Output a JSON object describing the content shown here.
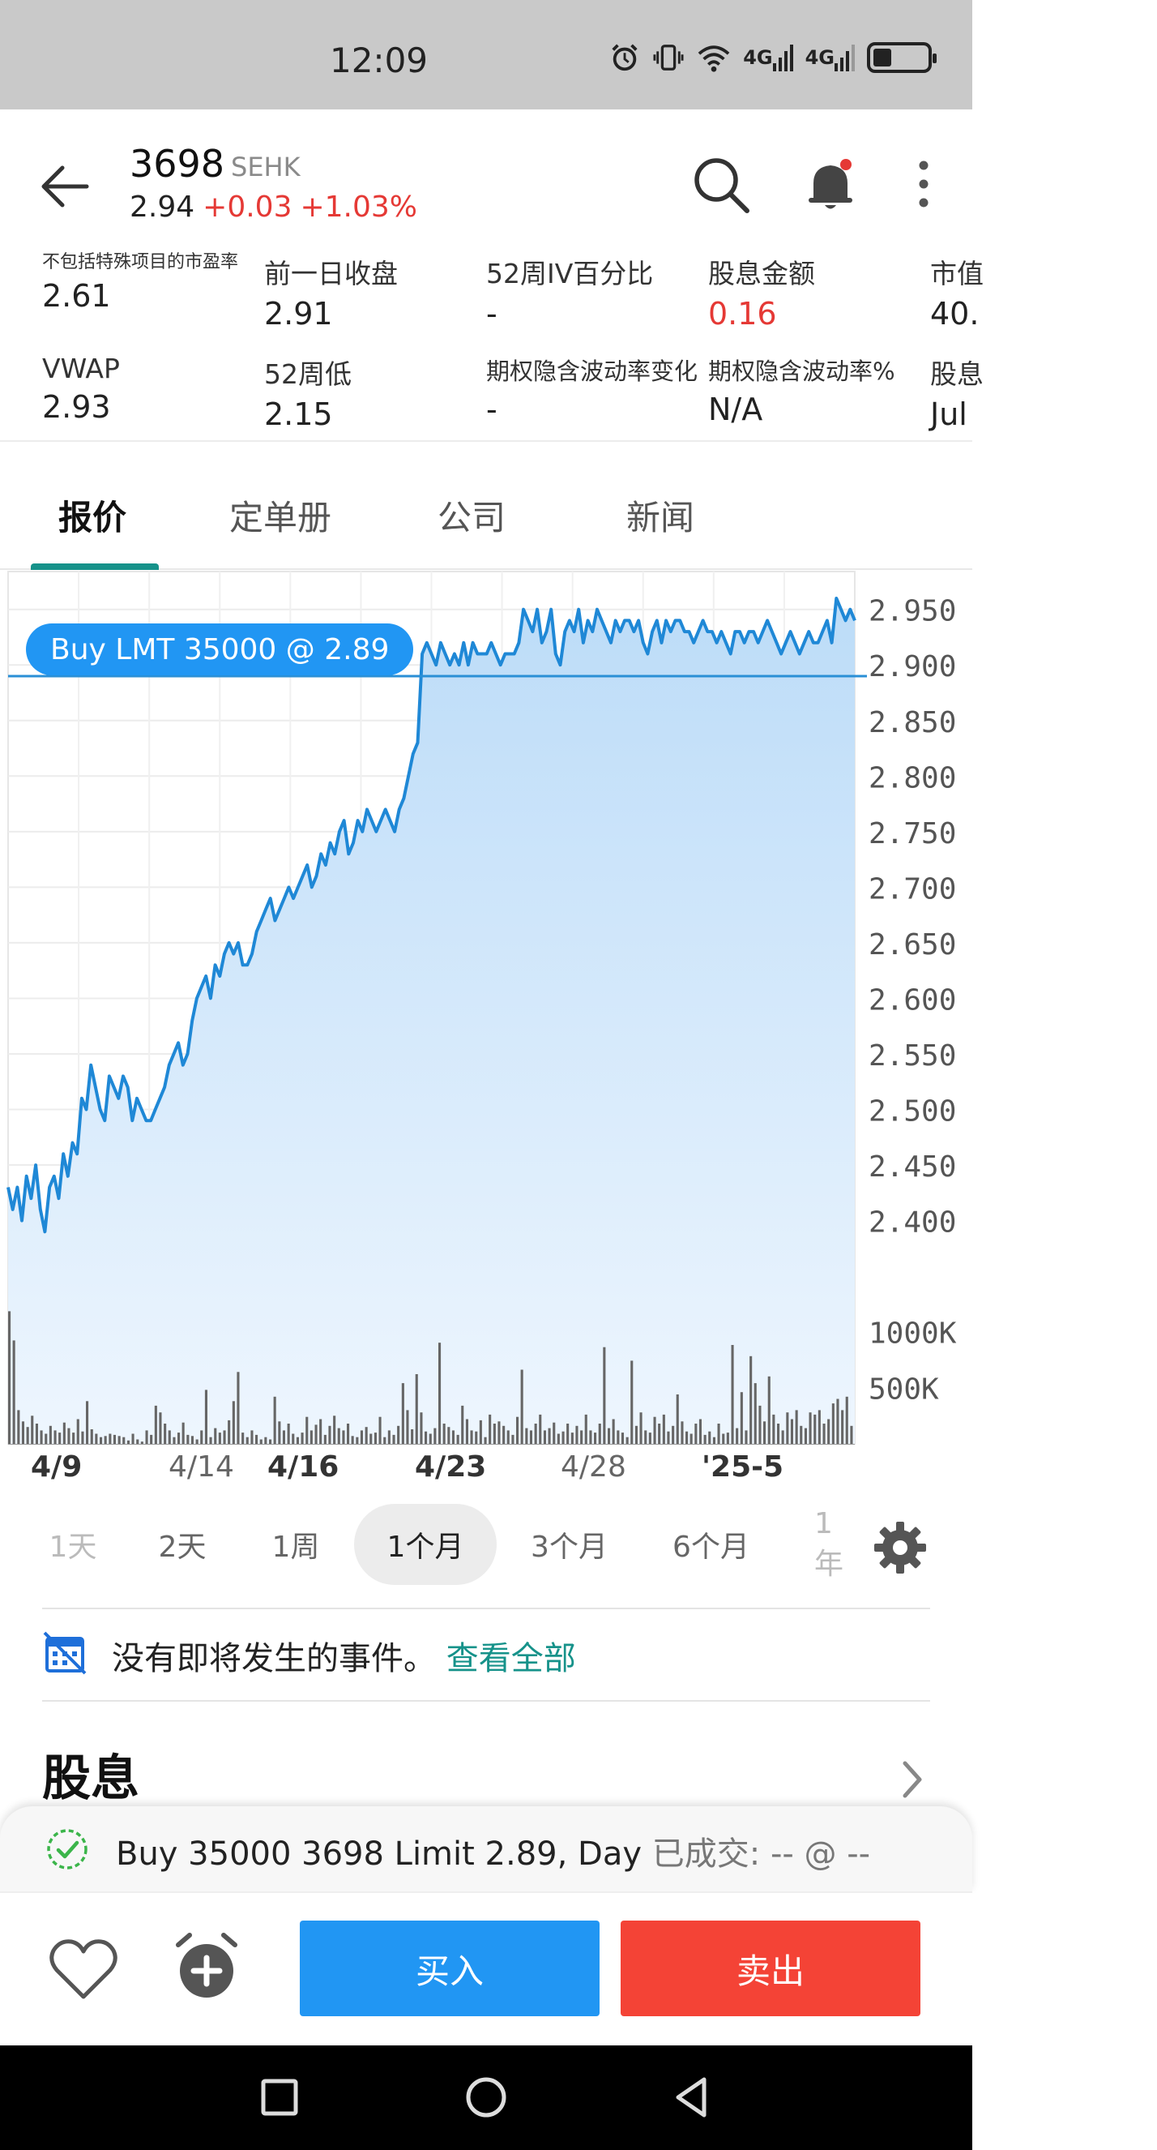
{
  "status_bar": {
    "time": "12:09",
    "net1": "4G",
    "net2": "4G"
  },
  "header": {
    "symbol": "3698",
    "exchange": "SEHK",
    "last": "2.94",
    "change": "+0.03",
    "change_pct": "+1.03%"
  },
  "metrics": [
    {
      "label": "不包括特殊项目的市盈率",
      "value": "2.61",
      "red": false
    },
    {
      "label": "前一日收盘",
      "value": "2.91",
      "red": false
    },
    {
      "label": "52周IV百分比",
      "value": "-",
      "red": false
    },
    {
      "label": "股息金额",
      "value": "0.16",
      "red": true
    },
    {
      "label": "市值",
      "value": "40.",
      "red": false
    },
    {
      "label": "VWAP",
      "value": "2.93",
      "red": false
    },
    {
      "label": "52周低",
      "value": "2.15",
      "red": false
    },
    {
      "label": "期权隐含波动率变化",
      "value": "-",
      "red": false
    },
    {
      "label": "期权隐含波动率%",
      "value": "N/A",
      "red": false
    },
    {
      "label": "股息",
      "value": "Jul",
      "red": false
    }
  ],
  "tabs": [
    "报价",
    "定单册",
    "公司",
    "新闻"
  ],
  "order_pill": "Buy LMT 35000 @ 2.89",
  "chart_data": {
    "type": "line",
    "price_axis_ticks": [
      "2.950",
      "2.900",
      "2.850",
      "2.800",
      "2.750",
      "2.700",
      "2.650",
      "2.600",
      "2.550",
      "2.500",
      "2.450",
      "2.400"
    ],
    "ylim": [
      2.38,
      2.96
    ],
    "volume_ticks": [
      "1000K",
      "500K"
    ],
    "volume_ylim": [
      0,
      1500
    ],
    "x_labels": [
      {
        "text": "4/9",
        "bold": true
      },
      {
        "text": "4/14",
        "bold": false
      },
      {
        "text": "4/16",
        "bold": true
      },
      {
        "text": "4/23",
        "bold": true
      },
      {
        "text": "4/28",
        "bold": false
      },
      {
        "text": "'25-5",
        "bold": true
      }
    ],
    "limit_price": 2.89,
    "price": [
      2.43,
      2.41,
      2.43,
      2.4,
      2.44,
      2.42,
      2.45,
      2.41,
      2.39,
      2.43,
      2.44,
      2.42,
      2.46,
      2.44,
      2.47,
      2.46,
      2.51,
      2.5,
      2.54,
      2.52,
      2.5,
      2.49,
      2.53,
      2.52,
      2.51,
      2.53,
      2.52,
      2.49,
      2.51,
      2.5,
      2.49,
      2.49,
      2.5,
      2.51,
      2.52,
      2.54,
      2.55,
      2.56,
      2.54,
      2.55,
      2.58,
      2.6,
      2.61,
      2.62,
      2.6,
      2.63,
      2.62,
      2.64,
      2.65,
      2.64,
      2.65,
      2.63,
      2.63,
      2.64,
      2.66,
      2.67,
      2.68,
      2.69,
      2.67,
      2.68,
      2.69,
      2.7,
      2.69,
      2.7,
      2.71,
      2.72,
      2.7,
      2.71,
      2.73,
      2.72,
      2.74,
      2.73,
      2.75,
      2.76,
      2.73,
      2.74,
      2.76,
      2.75,
      2.77,
      2.76,
      2.75,
      2.76,
      2.77,
      2.76,
      2.75,
      2.77,
      2.78,
      2.8,
      2.82,
      2.83,
      2.91,
      2.92,
      2.91,
      2.9,
      2.92,
      2.91,
      2.9,
      2.91,
      2.9,
      2.92,
      2.9,
      2.92,
      2.91,
      2.91,
      2.91,
      2.92,
      2.91,
      2.9,
      2.91,
      2.91,
      2.91,
      2.92,
      2.95,
      2.94,
      2.93,
      2.95,
      2.92,
      2.93,
      2.95,
      2.91,
      2.9,
      2.93,
      2.94,
      2.93,
      2.95,
      2.92,
      2.94,
      2.93,
      2.95,
      2.94,
      2.93,
      2.92,
      2.94,
      2.93,
      2.94,
      2.94,
      2.93,
      2.94,
      2.92,
      2.91,
      2.93,
      2.94,
      2.92,
      2.94,
      2.93,
      2.94,
      2.94,
      2.93,
      2.93,
      2.92,
      2.93,
      2.94,
      2.93,
      2.93,
      2.92,
      2.93,
      2.92,
      2.91,
      2.93,
      2.93,
      2.92,
      2.93,
      2.93,
      2.92,
      2.93,
      2.94,
      2.93,
      2.92,
      2.91,
      2.92,
      2.93,
      2.92,
      2.91,
      2.92,
      2.93,
      2.92,
      2.92,
      2.93,
      2.94,
      2.92,
      2.96,
      2.95,
      2.94,
      2.95,
      2.94
    ],
    "volume": [
      1180,
      920,
      300,
      200,
      150,
      250,
      180,
      120,
      90,
      160,
      120,
      100,
      190,
      140,
      100,
      220,
      110,
      380,
      130,
      90,
      60,
      70,
      90,
      80,
      70,
      60,
      30,
      90,
      40,
      20,
      120,
      80,
      340,
      280,
      180,
      120,
      60,
      100,
      190,
      80,
      70,
      40,
      120,
      480,
      60,
      140,
      100,
      120,
      210,
      380,
      640,
      100,
      60,
      120,
      80,
      40,
      60,
      40,
      420,
      200,
      120,
      180,
      90,
      60,
      100,
      240,
      120,
      170,
      220,
      80,
      160,
      250,
      140,
      120,
      180,
      70,
      60,
      120,
      150,
      90,
      100,
      240,
      60,
      120,
      80,
      160,
      540,
      300,
      130,
      620,
      280,
      110,
      90,
      140,
      900,
      180,
      150,
      120,
      80,
      340,
      220,
      120,
      110,
      210,
      60,
      260,
      180,
      200,
      160,
      120,
      80,
      240,
      660,
      140,
      120,
      180,
      260,
      120,
      140,
      190,
      90,
      110,
      180,
      100,
      160,
      120,
      260,
      120,
      100,
      180,
      860,
      140,
      220,
      120,
      100,
      60,
      740,
      160,
      280,
      120,
      100,
      240,
      180,
      260,
      110,
      160,
      440,
      200,
      110,
      90,
      180,
      220,
      80,
      110,
      60,
      180,
      90,
      100,
      880,
      140,
      460,
      120,
      780,
      540,
      340,
      200,
      600,
      260,
      180,
      120,
      280,
      220,
      300,
      160,
      140,
      280,
      260,
      300,
      180,
      220,
      360,
      400,
      300,
      420,
      160
    ]
  },
  "ranges": [
    "1天",
    "2天",
    "1周",
    "1个月",
    "3个月",
    "6个月",
    "1年"
  ],
  "active_range": "1个月",
  "events": {
    "text": "没有即将发生的事件。",
    "link": "查看全部"
  },
  "section": {
    "title": "股息"
  },
  "order_status": {
    "main": "Buy 35000 3698 Limit 2.89, Day",
    "filled_label": "已成交:",
    "filled_value": "-- @ --"
  },
  "actions": {
    "buy": "买入",
    "sell": "卖出"
  }
}
